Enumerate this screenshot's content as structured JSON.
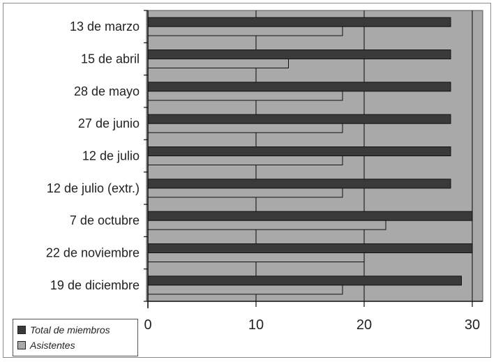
{
  "chart_data": {
    "type": "bar",
    "orientation": "horizontal",
    "categories": [
      "13 de marzo",
      "15 de abril",
      "28 de mayo",
      "27 de junio",
      "12 de julio",
      "12 de julio (extr.)",
      "7 de octubre",
      "22 de noviembre",
      "19 de diciembre"
    ],
    "series": [
      {
        "name": "Total de miembros",
        "values": [
          28,
          28,
          28,
          28,
          28,
          28,
          30,
          30,
          29
        ],
        "color": "#3a3a3a"
      },
      {
        "name": "Asistentes",
        "values": [
          18,
          13,
          18,
          18,
          18,
          18,
          22,
          20,
          18
        ],
        "color": "#a9a9a9"
      }
    ],
    "xlim": [
      0,
      31
    ],
    "xticks": [
      "0",
      "10",
      "20",
      "30"
    ],
    "xtick_values": [
      0,
      10,
      20,
      30
    ],
    "grid": true,
    "plot_background": "#a9a9a9",
    "legend_position": "bottom-left"
  }
}
